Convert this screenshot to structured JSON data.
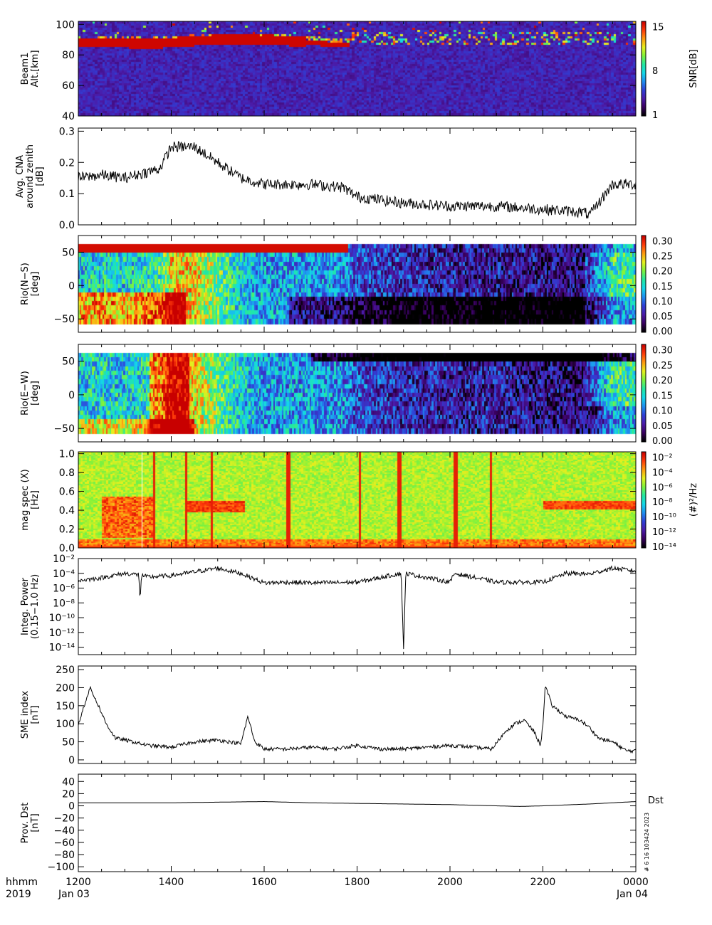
{
  "footer": {
    "hhmm": "hhmm",
    "year": "2019",
    "start_date": "Jan 03",
    "end_date": "Jan 04",
    "x_ticks": [
      "1200",
      "1400",
      "1600",
      "1800",
      "2000",
      "2200",
      "0000"
    ]
  },
  "stamp": "# 6 16 103424 2023",
  "colors": {
    "frame": "#000000",
    "rainbow": [
      "#000000",
      "#3a0060",
      "#4b1ba8",
      "#2f3fd6",
      "#1f8ff0",
      "#14d8e8",
      "#23e8a0",
      "#7ef23c",
      "#e6f01e",
      "#ff9a10",
      "#ff3a0a",
      "#c80000"
    ]
  },
  "chart_data": [
    {
      "id": "snr",
      "type": "heatmap",
      "ylabel_lines": [
        "Beam1",
        "Alt.[km]"
      ],
      "yticks": [
        "40",
        "60",
        "80",
        "100"
      ],
      "ylim": [
        40,
        102
      ],
      "colorbar": {
        "label": "SNR[dB]",
        "ticks": [
          "1",
          "8",
          "15"
        ],
        "range": [
          1,
          15
        ]
      },
      "features": [
        {
          "name": "echo-band",
          "x": [
            12.0,
            12.8,
            13.5,
            14.0,
            14.5,
            15.0,
            15.5,
            16.0,
            16.5,
            17.0,
            17.7,
            18.0
          ],
          "y": [
            88,
            88,
            87,
            88,
            89,
            90,
            90,
            90,
            89,
            88,
            86,
            88
          ]
        }
      ]
    },
    {
      "id": "cna",
      "type": "line",
      "ylabel_lines": [
        "Avg. CNA",
        "around zenith",
        "[dB]"
      ],
      "yticks": [
        "0.0",
        "0.1",
        "0.2",
        "0.3"
      ],
      "ylim": [
        0,
        0.31
      ],
      "x": [
        12.0,
        12.5,
        13.0,
        13.5,
        13.75,
        14.0,
        14.5,
        15.0,
        15.5,
        16.0,
        17.0,
        17.7,
        18.0,
        19.0,
        20.0,
        21.0,
        22.0,
        22.9,
        23.0,
        23.5,
        24.0
      ],
      "y": [
        0.15,
        0.16,
        0.15,
        0.17,
        0.18,
        0.25,
        0.25,
        0.2,
        0.15,
        0.13,
        0.13,
        0.12,
        0.09,
        0.07,
        0.06,
        0.06,
        0.05,
        0.04,
        0.03,
        0.13,
        0.13
      ]
    },
    {
      "id": "rio-ns",
      "type": "heatmap",
      "ylabel_lines": [
        "Rio(N−S)",
        "[deg]"
      ],
      "yticks": [
        "−50",
        "0",
        "50"
      ],
      "ylim": [
        -70,
        75
      ],
      "colorbar": {
        "label": "",
        "ticks": [
          "0.00",
          "0.05",
          "0.10",
          "0.15",
          "0.20",
          "0.25",
          "0.30"
        ],
        "range": [
          0,
          0.3
        ]
      }
    },
    {
      "id": "rio-ew",
      "type": "heatmap",
      "ylabel_lines": [
        "Rio(E−W)",
        "[deg]"
      ],
      "yticks": [
        "−50",
        "0",
        "50"
      ],
      "ylim": [
        -70,
        75
      ],
      "colorbar": {
        "label": "",
        "ticks": [
          "0.00",
          "0.05",
          "0.10",
          "0.15",
          "0.20",
          "0.25",
          "0.30"
        ],
        "range": [
          0,
          0.3
        ]
      }
    },
    {
      "id": "magspec",
      "type": "heatmap",
      "ylabel_lines": [
        "mag spec (X)",
        "[Hz]"
      ],
      "yticks": [
        "0.0",
        "0.2",
        "0.4",
        "0.6",
        "0.8",
        "1.0"
      ],
      "ylim": [
        0,
        1.02
      ],
      "colorbar": {
        "label": "(#)²/Hz",
        "ticks": [
          "10⁻¹⁴",
          "10⁻¹²",
          "10⁻¹⁰",
          "10⁻⁸",
          "10⁻⁶",
          "10⁻⁴",
          "10⁻²"
        ],
        "range": [
          -14,
          -1
        ]
      },
      "bursts_hours": [
        13.33,
        13.6,
        14.3,
        14.85,
        16.5,
        18.05,
        18.9,
        20.1,
        20.85
      ]
    },
    {
      "id": "integ-power",
      "type": "line",
      "ylabel_lines": [
        "Integ. Power",
        "(0.15−1.0 Hz)"
      ],
      "yticks": [
        "10⁻¹⁴",
        "10⁻¹²",
        "10⁻¹⁰",
        "10⁻⁸",
        "10⁻⁶",
        "10⁻⁴",
        "10⁻²"
      ],
      "ylim": [
        -15,
        -2
      ],
      "x": [
        12.0,
        12.5,
        13.0,
        13.3,
        13.33,
        13.36,
        13.5,
        14.0,
        14.5,
        15.0,
        15.5,
        16.0,
        16.5,
        17.0,
        18.0,
        18.95,
        19.0,
        19.05,
        20.0,
        20.1,
        21.0,
        22.0,
        22.5,
        23.0,
        23.5,
        24.0
      ],
      "y": [
        -5.0,
        -4.6,
        -4.0,
        -4.2,
        -7.5,
        -4.3,
        -4.5,
        -4.3,
        -3.8,
        -3.3,
        -4.0,
        -5.3,
        -5.2,
        -5.3,
        -5.2,
        -4.0,
        -14.0,
        -4.0,
        -5.2,
        -4.0,
        -5.2,
        -5.2,
        -4.0,
        -4.1,
        -3.3,
        -3.7
      ]
    },
    {
      "id": "sme",
      "type": "line",
      "ylabel_lines": [
        "SME index",
        "[nT]"
      ],
      "yticks": [
        "0",
        "50",
        "100",
        "150",
        "200",
        "250"
      ],
      "ylim": [
        -10,
        260
      ],
      "x": [
        12.0,
        12.1,
        12.25,
        12.4,
        12.6,
        12.8,
        13.0,
        13.5,
        14.0,
        14.5,
        15.0,
        15.5,
        15.65,
        15.8,
        16.0,
        16.5,
        17.0,
        17.5,
        18.0,
        18.5,
        19.0,
        19.5,
        20.0,
        20.5,
        20.9,
        21.2,
        21.4,
        21.6,
        21.8,
        21.95,
        22.0,
        22.05,
        22.2,
        22.5,
        22.8,
        23.0,
        23.2,
        23.5,
        23.8,
        24.0
      ],
      "y": [
        95,
        140,
        200,
        160,
        100,
        60,
        55,
        40,
        35,
        50,
        55,
        45,
        120,
        50,
        30,
        30,
        35,
        30,
        40,
        30,
        30,
        35,
        40,
        35,
        30,
        80,
        100,
        110,
        80,
        40,
        100,
        205,
        150,
        120,
        110,
        90,
        60,
        50,
        25,
        25
      ]
    },
    {
      "id": "dst",
      "type": "line",
      "ylabel_lines": [
        "Prov. Dst",
        "[nT]"
      ],
      "yticks": [
        "−100",
        "−80",
        "−60",
        "−40",
        "−20",
        "0",
        "20",
        "40"
      ],
      "ylim": [
        -108,
        52
      ],
      "legend": "Dst",
      "x": [
        12.0,
        14.0,
        16.0,
        17.0,
        18.0,
        19.0,
        20.0,
        21.0,
        21.5,
        22.0,
        23.0,
        24.0
      ],
      "y": [
        5,
        5,
        7,
        5,
        4,
        3,
        2,
        0,
        -1,
        0,
        3,
        7
      ]
    }
  ]
}
